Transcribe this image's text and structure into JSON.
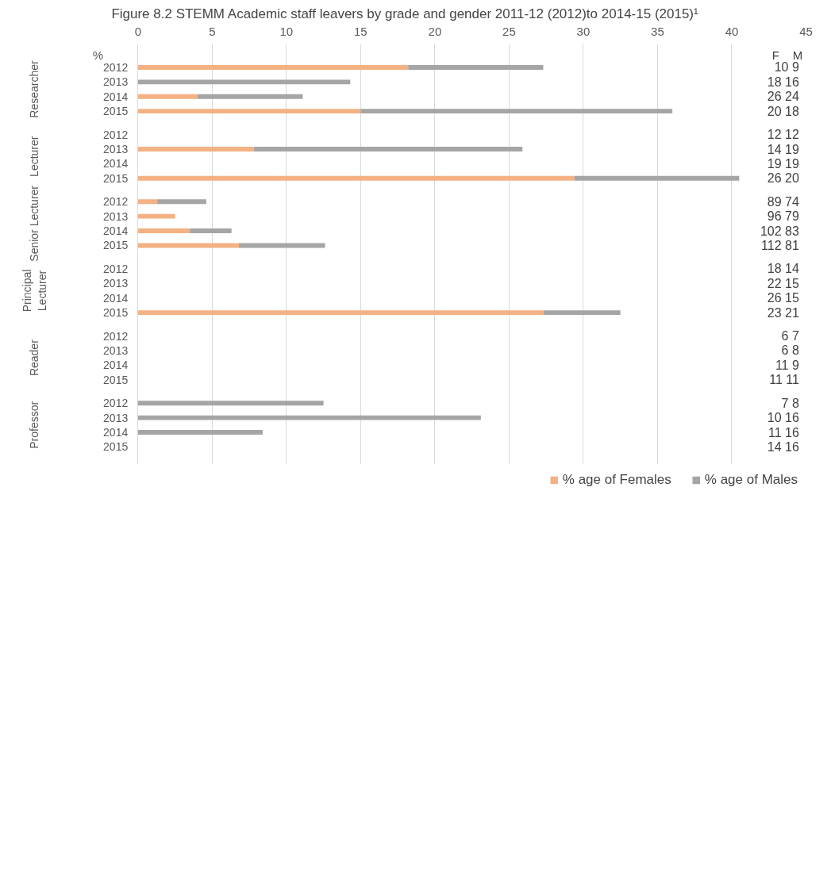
{
  "chart_data": {
    "type": "bar",
    "orientation": "horizontal",
    "stacked": true,
    "title": "Figure 8.2 STEMM Academic staff leavers by grade and gender 2011-12 (2012)to 2014-15 (2015)¹",
    "xlabel": "%",
    "categories": [
      "2012",
      "2013",
      "2014",
      "2015",
      "2012",
      "2013",
      "2014",
      "2015",
      "2012",
      "2013",
      "2014",
      "2015",
      "2012",
      "2013",
      "2014",
      "2015",
      "2012",
      "2013",
      "2014",
      "2015",
      "2012",
      "2013",
      "2014",
      "2015"
    ],
    "series": [
      {
        "name": "% age of Females",
        "color": "#f4b183",
        "values": [
          18.2,
          0,
          4.0,
          15.0,
          0,
          7.8,
          0,
          29.4,
          1.3,
          2.5,
          3.5,
          6.8,
          0,
          0,
          0,
          27.3,
          0,
          0,
          0,
          0,
          0,
          0,
          0,
          0
        ]
      },
      {
        "name": "% age of Males",
        "color": "#a5a5a5",
        "values": [
          9.1,
          14.3,
          7.1,
          21.0,
          0,
          18.1,
          0,
          11.1,
          3.3,
          0,
          2.8,
          5.8,
          0,
          0,
          0,
          5.2,
          0,
          0,
          0,
          0,
          12.5,
          23.1,
          8.4,
          0
        ]
      }
    ],
    "xlim": [
      0,
      45
    ],
    "xticks": [
      0,
      5,
      10,
      15,
      20,
      25,
      30,
      35,
      40,
      45
    ],
    "grid": "x",
    "legend": "bottom",
    "annotations": [
      "Researcher",
      "Lecturer",
      "Senior Lecturer",
      "Principal Lecturer",
      "Reader",
      "Professor",
      "F",
      "M",
      "10  9",
      "18  16",
      "26  24",
      "20  18",
      "12  12",
      "14  19",
      "19  19",
      "26  20",
      "89  74",
      "96  79",
      "102  83",
      "112  81",
      "18  14",
      "22  15",
      "26  15",
      "23  21",
      "6  7",
      "6  8",
      "11  9",
      "11  11",
      "7  8",
      "10  16",
      "11  16",
      "14  16"
    ]
  }
}
